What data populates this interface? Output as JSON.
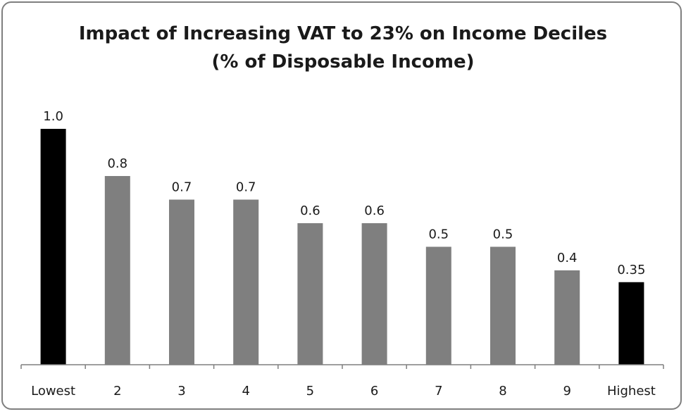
{
  "chart_data": {
    "type": "bar",
    "title_line1": "Impact of Increasing VAT to 23% on Income Deciles",
    "title_line2": "(% of Disposable Income)",
    "xlabel": "",
    "ylabel": "",
    "categories": [
      "Lowest",
      "2",
      "3",
      "4",
      "5",
      "6",
      "7",
      "8",
      "9",
      "Highest"
    ],
    "values": [
      1.0,
      0.8,
      0.7,
      0.7,
      0.6,
      0.6,
      0.5,
      0.5,
      0.4,
      0.35
    ],
    "value_labels": [
      "1.0",
      "0.8",
      "0.7",
      "0.7",
      "0.6",
      "0.6",
      "0.5",
      "0.5",
      "0.4",
      "0.35"
    ],
    "bar_colors": [
      "#000000",
      "#7f7f7f",
      "#7f7f7f",
      "#7f7f7f",
      "#7f7f7f",
      "#7f7f7f",
      "#7f7f7f",
      "#7f7f7f",
      "#7f7f7f",
      "#000000"
    ],
    "ylim": [
      0,
      1.0
    ],
    "grid": false,
    "legend": "none"
  }
}
